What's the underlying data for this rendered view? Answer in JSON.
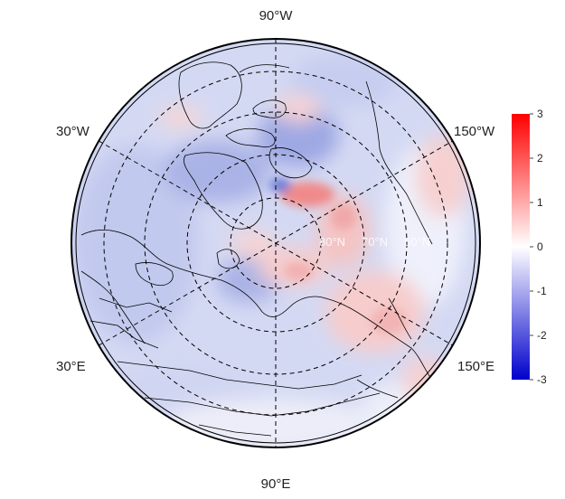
{
  "map": {
    "projection": "north-polar-stereographic",
    "longitude_labels": {
      "top": "90°W",
      "bottom": "90°E",
      "upper_left": "30°W",
      "upper_right": "150°W",
      "lower_left": "30°E",
      "lower_right": "150°E"
    },
    "latitude_labels": [
      "80°N",
      "70°N",
      "60°N"
    ],
    "graticule_lat": [
      80,
      70,
      60,
      50
    ],
    "graticule_lon": [
      0,
      30,
      60,
      90,
      120,
      150
    ],
    "colors": {
      "negative": "#0000cc",
      "zero": "#ffffff",
      "positive": "#ff0000",
      "coastline": "#000000",
      "graticule": "#000000"
    }
  },
  "colorbar": {
    "min": -3,
    "max": 3,
    "ticks": [
      "3",
      "2",
      "1",
      "0",
      "-1",
      "-2",
      "-3"
    ],
    "tick_values": [
      3,
      2,
      1,
      0,
      -1,
      -2,
      -3
    ]
  }
}
